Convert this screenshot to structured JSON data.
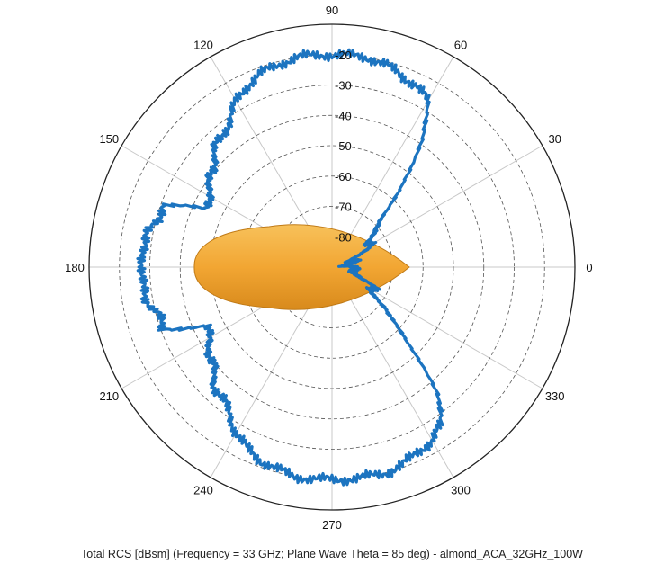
{
  "colors": {
    "trace": "#1c74c0",
    "target_fill": "#f2a633",
    "target_stroke": "#c07a16",
    "grid_dashed": "#555555",
    "grid_spoke": "#c8c8c8",
    "frame": "#222222"
  },
  "caption": "Total RCS [dBsm] (Frequency = 33 GHz; Plane Wave Theta = 85 deg) - almond_ACA_32GHz_100W",
  "chart_data": {
    "type": "polar-line",
    "angle_unit": "deg",
    "angle_ticks": [
      0,
      30,
      60,
      90,
      120,
      150,
      180,
      210,
      240,
      270,
      300,
      330
    ],
    "radial_ticks": [
      -80,
      -70,
      -60,
      -50,
      -40,
      -30,
      -20
    ],
    "radial_range": [
      -90,
      -10
    ],
    "grid": true,
    "series": [
      {
        "type": "polar-line",
        "angles": [
          0,
          5,
          10,
          15,
          20,
          25,
          30,
          35,
          40,
          45,
          50,
          55,
          60,
          65,
          70,
          75,
          80,
          85,
          90,
          95,
          100,
          105,
          110,
          115,
          120,
          125,
          130,
          135,
          140,
          145,
          150,
          155,
          160,
          165,
          170,
          175,
          180,
          185,
          190,
          195,
          200,
          205,
          210,
          215,
          220,
          225,
          230,
          235,
          240,
          245,
          250,
          255,
          260,
          265,
          270,
          275,
          280,
          285,
          290,
          295,
          300,
          305,
          310,
          315,
          320,
          325,
          330,
          335,
          340,
          345,
          350,
          355
        ],
        "values": [
          -82,
          -87,
          -83,
          -82,
          -84,
          -80,
          -74,
          -76,
          -72,
          -66,
          -54,
          -37,
          -27,
          -24,
          -23,
          -21,
          -20,
          -20,
          -20,
          -20,
          -20,
          -21,
          -22,
          -24,
          -27,
          -31,
          -34,
          -35,
          -39,
          -41,
          -43,
          -45,
          -30,
          -31,
          -28,
          -27,
          -28,
          -27,
          -28,
          -31,
          -30,
          -45,
          -43,
          -41,
          -39,
          -35,
          -34,
          -31,
          -27,
          -24,
          -22,
          -21,
          -20,
          -20,
          -20,
          -20,
          -20,
          -20,
          -21,
          -23,
          -24,
          -27,
          -37,
          -54,
          -66,
          -72,
          -76,
          -74,
          -80,
          -84,
          -82,
          -83
        ]
      }
    ],
    "target_shape": "almond"
  }
}
